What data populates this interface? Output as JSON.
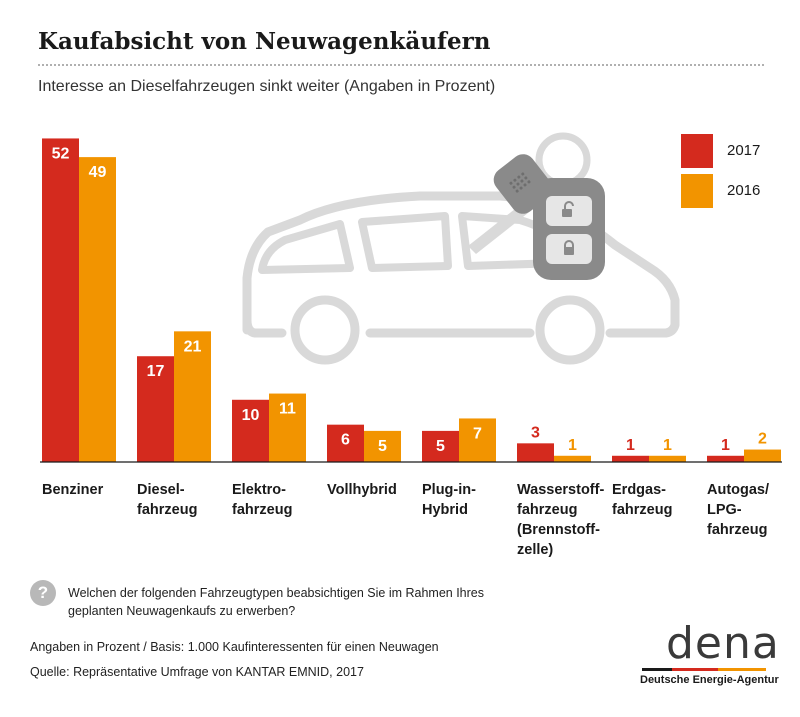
{
  "header": {
    "title": "Kaufabsicht von Neuwagenkäufern",
    "subtitle": "Interesse an Dieselfahrzeugen sinkt weiter (Angaben in Prozent)"
  },
  "chart_data": {
    "type": "bar",
    "categories": [
      "Benziner",
      "Diesel-\nfahrzeug",
      "Elektro-\nfahrzeug",
      "Vollhybrid",
      "Plug-in-\nHybrid",
      "Wasserstoff-\nfahrzeug\n(Brennstoff-\nzelle)",
      "Erdgas-\nfahrzeug",
      "Autogas/\nLPG-\nfahrzeug"
    ],
    "series": [
      {
        "name": "2017",
        "values": [
          52,
          17,
          10,
          6,
          5,
          3,
          1,
          1
        ],
        "color": "#d42a1e"
      },
      {
        "name": "2016",
        "values": [
          49,
          21,
          11,
          5,
          7,
          1,
          1,
          2
        ],
        "color": "#f29400"
      }
    ],
    "ylim": [
      0,
      54
    ],
    "grid": false,
    "legend": "top-right",
    "data_labels": true
  },
  "illustration": {
    "icon": "car-with-key-icon",
    "color": "#d9d9d9"
  },
  "question": {
    "icon": "question-icon",
    "symbol": "?",
    "text": "Welchen der folgenden Fahrzeugtypen beabsichtigen Sie im Rahmen Ihres geplanten Neuwagenkaufs zu erwerben?"
  },
  "footer": {
    "basis": "Angaben in Prozent / Basis: 1.000 Kaufinteressenten für einen Neuwagen",
    "source": "Quelle: Repräsentative Umfrage von KANTAR EMNID, 2017"
  },
  "logo": {
    "wordmark": "dena",
    "tagline": "Deutsche Energie-Agentur",
    "stripe_colors": [
      "#1a1a1a",
      "#d42a1e",
      "#f29400"
    ]
  }
}
